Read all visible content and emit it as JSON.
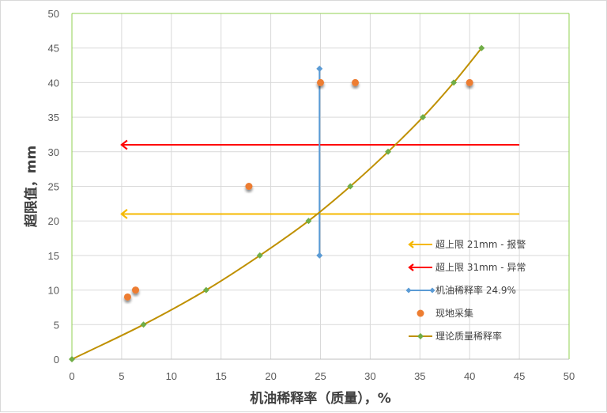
{
  "chart_data": {
    "type": "scatter",
    "xlabel": "机油稀释率（质量），%",
    "ylabel": "超限值，mm",
    "xlim": [
      0,
      50
    ],
    "ylim": [
      0,
      50
    ],
    "x_ticks": [
      0,
      5,
      10,
      15,
      20,
      25,
      30,
      35,
      40,
      45,
      50
    ],
    "y_ticks": [
      0,
      5,
      10,
      15,
      20,
      25,
      30,
      35,
      40,
      45,
      50
    ],
    "grid": true,
    "legend_position": "right",
    "series": [
      {
        "name": "超上限 21mm - 报警",
        "kind": "arrow",
        "color": "#f5b800",
        "x": [
          45,
          5
        ],
        "y": [
          21,
          21
        ]
      },
      {
        "name": "超上限 31mm - 异常",
        "kind": "arrow",
        "color": "#ff0000",
        "x": [
          45,
          5
        ],
        "y": [
          31,
          31
        ]
      },
      {
        "name": "机油稀释率 24.9%",
        "kind": "line-markers",
        "color": "#5b9bd5",
        "x": [
          24.9,
          24.9
        ],
        "y": [
          15,
          42
        ]
      },
      {
        "name": "现地采集",
        "kind": "scatter",
        "color": "#ed7d31",
        "x": [
          5.6,
          6.4,
          17.8,
          25,
          28.5,
          40
        ],
        "y": [
          9,
          10,
          25,
          40,
          40,
          40
        ]
      },
      {
        "name": "理论质量稀释率",
        "kind": "curve-markers",
        "color": "#bf9000",
        "marker_color": "#70ad47",
        "x": [
          0,
          7.2,
          13.5,
          18.9,
          23.8,
          28,
          31.8,
          35.3,
          38.4,
          41.2
        ],
        "y": [
          0,
          5,
          10,
          15,
          20,
          25,
          30,
          35,
          40,
          45
        ]
      }
    ]
  }
}
